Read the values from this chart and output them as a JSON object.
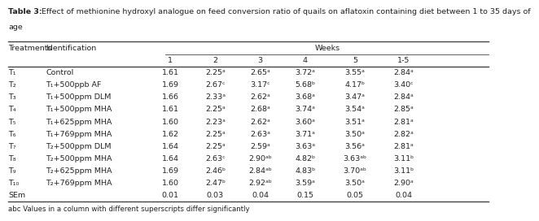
{
  "title_bold": "Table 3:",
  "title_rest": " Effect of methionine hydroxyl analogue on feed conversion ratio of quails on aflatoxin containing diet between 1 to 35 days of age",
  "footnote": "abc Values in a column with different superscripts differ significantly",
  "col_header_1": "Treatments",
  "col_header_2": "Identification",
  "weeks_header": "Weeks",
  "week_cols": [
    "1",
    "2",
    "3",
    "4",
    "5",
    "1-5"
  ],
  "treatments": [
    "T₁",
    "T₂",
    "T₃",
    "T₄",
    "T₅",
    "T₆",
    "T₇",
    "T₈",
    "T₉",
    "T₁₀",
    "SEm"
  ],
  "identifications": [
    "Control",
    "T₁+500ppb AF",
    "T₁+500ppm DLM",
    "T₁+500ppm MHA",
    "T₁+625ppm MHA",
    "T₁+769ppm MHA",
    "T₂+500ppm DLM",
    "T₂+500ppm MHA",
    "T₂+625ppm MHA",
    "T₂+769ppm MHA",
    ""
  ],
  "data": [
    [
      "1.61",
      "2.25ᵃ",
      "2.65ᵃ",
      "3.72ᵃ",
      "3.55ᵃ",
      "2.84ᵃ"
    ],
    [
      "1.69",
      "2.67ᶜ",
      "3.17ᶜ",
      "5.68ᵇ",
      "4.17ᵇ",
      "3.40ᶜ"
    ],
    [
      "1.66",
      "2.33ᵃ",
      "2.62ᵃ",
      "3.68ᵃ",
      "3.47ᵃ",
      "2.84ᵃ"
    ],
    [
      "1.61",
      "2.25ᵃ",
      "2.68ᵃ",
      "3.74ᵃ",
      "3.54ᵃ",
      "2.85ᵃ"
    ],
    [
      "1.60",
      "2.23ᵃ",
      "2.62ᵃ",
      "3.60ᵃ",
      "3.51ᵃ",
      "2.81ᵃ"
    ],
    [
      "1.62",
      "2.25ᵃ",
      "2.63ᵃ",
      "3.71ᵃ",
      "3.50ᵃ",
      "2.82ᵃ"
    ],
    [
      "1.64",
      "2.25ᵃ",
      "2.59ᵃ",
      "3.63ᵃ",
      "3.56ᵃ",
      "2.81ᵃ"
    ],
    [
      "1.64",
      "2.63ᶜ",
      "2.90ᵃᵇ",
      "4.82ᵇ",
      "3.63ᵃᵇ",
      "3.11ᵇ"
    ],
    [
      "1.69",
      "2.46ᵇ",
      "2.84ᵃᵇ",
      "4.83ᵇ",
      "3.70ᵃᵇ",
      "3.11ᵇ"
    ],
    [
      "1.60",
      "2.47ᵇ",
      "2.92ᵃᵇ",
      "3.59ᵃ",
      "3.50ᵃ",
      "2.90ᵃ"
    ],
    [
      "0.01",
      "0.03",
      "0.04",
      "0.15",
      "0.05",
      "0.04"
    ]
  ],
  "bg_color": "#ffffff",
  "text_color": "#222222",
  "font_size": 6.8,
  "title_font_size": 6.8,
  "footnote_font_size": 6.2
}
